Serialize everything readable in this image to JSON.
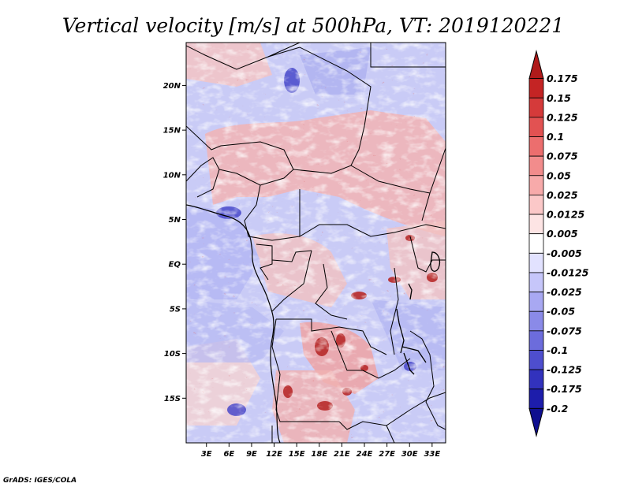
{
  "chart_data": {
    "type": "heatmap",
    "title": "Vertical velocity [m/s] at 500hPa, VT: 2019120221",
    "xlabel": "",
    "ylabel": "",
    "x_ticks": [
      {
        "value": 3,
        "label": "3E"
      },
      {
        "value": 6,
        "label": "6E"
      },
      {
        "value": 9,
        "label": "9E"
      },
      {
        "value": 12,
        "label": "12E"
      },
      {
        "value": 15,
        "label": "15E"
      },
      {
        "value": 18,
        "label": "18E"
      },
      {
        "value": 21,
        "label": "21E"
      },
      {
        "value": 24,
        "label": "24E"
      },
      {
        "value": 27,
        "label": "27E"
      },
      {
        "value": 30,
        "label": "30E"
      },
      {
        "value": 33,
        "label": "33E"
      }
    ],
    "y_ticks": [
      {
        "value": 20,
        "label": "20N"
      },
      {
        "value": 15,
        "label": "15N"
      },
      {
        "value": 10,
        "label": "10N"
      },
      {
        "value": 5,
        "label": "5N"
      },
      {
        "value": 0,
        "label": "EQ"
      },
      {
        "value": -5,
        "label": "5S"
      },
      {
        "value": -10,
        "label": "10S"
      },
      {
        "value": -15,
        "label": "15S"
      }
    ],
    "xlim": [
      0.3,
      34.8
    ],
    "ylim": [
      -20.0,
      24.8
    ],
    "colorbar": {
      "labels": [
        "0.175",
        "0.15",
        "0.125",
        "0.1",
        "0.075",
        "0.05",
        "0.025",
        "0.0125",
        "0.005",
        "-0.005",
        "-0.0125",
        "-0.025",
        "-0.05",
        "-0.075",
        "-0.1",
        "-0.125",
        "-0.175",
        "-0.2"
      ],
      "colors": [
        "#b01a1a",
        "#c42424",
        "#d53a3a",
        "#e25252",
        "#ec6e6e",
        "#f28c8c",
        "#f7aaaa",
        "#fbc8c8",
        "#fde4e4",
        "#ffffff",
        "#e2e2ff",
        "#c6c6fa",
        "#a8a8f2",
        "#8a8ae8",
        "#6c6cdc",
        "#4e4ece",
        "#3232bd",
        "#1d1dab",
        "#0f0f8f"
      ],
      "extend": "both"
    },
    "credit": "GrADS: IGES/COLA"
  }
}
